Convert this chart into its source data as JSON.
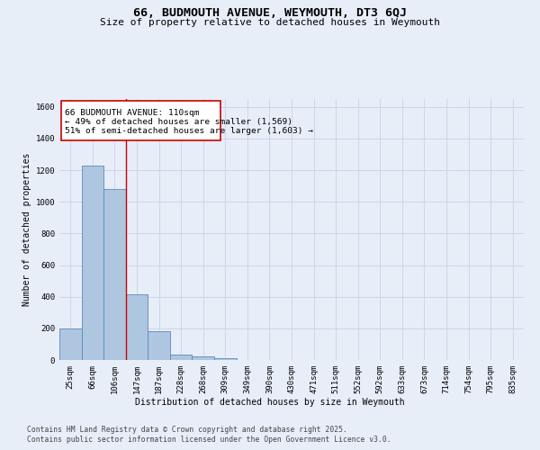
{
  "title": "66, BUDMOUTH AVENUE, WEYMOUTH, DT3 6QJ",
  "subtitle": "Size of property relative to detached houses in Weymouth",
  "xlabel": "Distribution of detached houses by size in Weymouth",
  "ylabel": "Number of detached properties",
  "categories": [
    "25sqm",
    "66sqm",
    "106sqm",
    "147sqm",
    "187sqm",
    "228sqm",
    "268sqm",
    "309sqm",
    "349sqm",
    "390sqm",
    "430sqm",
    "471sqm",
    "511sqm",
    "552sqm",
    "592sqm",
    "633sqm",
    "673sqm",
    "714sqm",
    "754sqm",
    "795sqm",
    "835sqm"
  ],
  "values": [
    200,
    1230,
    1080,
    415,
    180,
    35,
    20,
    10,
    0,
    0,
    0,
    0,
    0,
    0,
    0,
    0,
    0,
    0,
    0,
    0,
    0
  ],
  "bar_color": "#aec6e0",
  "bar_edge_color": "#5a8ab8",
  "grid_color": "#ccd6e8",
  "background_color": "#e8eef8",
  "annotation_box_color": "#ffffff",
  "annotation_border_color": "#cc0000",
  "red_line_x": 2.5,
  "annotation_text_line1": "66 BUDMOUTH AVENUE: 110sqm",
  "annotation_text_line2": "← 49% of detached houses are smaller (1,569)",
  "annotation_text_line3": "51% of semi-detached houses are larger (1,603) →",
  "ylim": [
    0,
    1650
  ],
  "yticks": [
    0,
    200,
    400,
    600,
    800,
    1000,
    1200,
    1400,
    1600
  ],
  "footnote_line1": "Contains HM Land Registry data © Crown copyright and database right 2025.",
  "footnote_line2": "Contains public sector information licensed under the Open Government Licence v3.0.",
  "title_fontsize": 9.5,
  "subtitle_fontsize": 8,
  "label_fontsize": 7,
  "tick_fontsize": 6.5,
  "annotation_fontsize": 6.8,
  "footnote_fontsize": 5.8
}
